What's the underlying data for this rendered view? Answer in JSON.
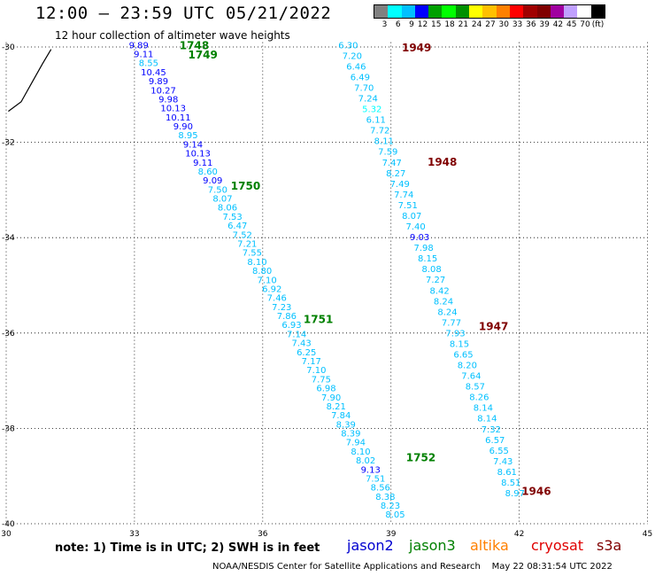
{
  "header": {
    "title": "12:00 — 23:59 UTC 05/21/2022",
    "subtitle": "12 hour collection of altimeter wave heights"
  },
  "legend": {
    "colors": [
      "#808080",
      "#00ffff",
      "#00c0ff",
      "#0000ff",
      "#00a000",
      "#00ff00",
      "#009000",
      "#ffff00",
      "#ffc000",
      "#ff8000",
      "#ff0000",
      "#a00000",
      "#800000",
      "#a000a0",
      "#c0a0ff",
      "#ffffff",
      "#000000"
    ],
    "labels": [
      "3",
      "6",
      "9",
      "12",
      "15",
      "18",
      "21",
      "24",
      "27",
      "30",
      "33",
      "36",
      "39",
      "42",
      "45",
      "70"
    ],
    "unit": "(ft)"
  },
  "map": {
    "lon_ticks": [
      "30",
      "33",
      "36",
      "39",
      "42",
      "45"
    ],
    "lat_ticks": [
      "-30",
      "-32",
      "-34",
      "-36",
      "-38",
      "-40"
    ]
  },
  "passes": [
    {
      "label": "1748",
      "lon": 34.4,
      "lat": -29.95,
      "color": "#008000"
    },
    {
      "label": "1749",
      "lon": 34.6,
      "lat": -30.15,
      "color": "#008000"
    },
    {
      "label": "1750",
      "lon": 35.6,
      "lat": -32.9,
      "color": "#008000"
    },
    {
      "label": "1751",
      "lon": 37.3,
      "lat": -35.7,
      "color": "#008000"
    },
    {
      "label": "1752",
      "lon": 39.7,
      "lat": -38.6,
      "color": "#008000"
    },
    {
      "label": "1949",
      "lon": 39.6,
      "lat": -30.0,
      "color": "#800000"
    },
    {
      "label": "1948",
      "lon": 40.2,
      "lat": -32.4,
      "color": "#800000"
    },
    {
      "label": "1947",
      "lon": 41.4,
      "lat": -35.85,
      "color": "#800000"
    },
    {
      "label": "1946",
      "lon": 42.4,
      "lat": -39.3,
      "color": "#800000"
    }
  ],
  "tracks": [
    {
      "name": "west",
      "lon_start": 33.1,
      "lon_end": 39.1,
      "lat_start": -29.95,
      "lat_end": -39.8,
      "values": [
        "9.89",
        "9.11",
        "8.55",
        "10.45",
        "9.89",
        "10.27",
        "9.98",
        "10.13",
        "10.11",
        "9.90",
        "8.95",
        "9.14",
        "10.13",
        "9.11",
        "8.60",
        "9.09",
        "7.50",
        "8.07",
        "8.06",
        "7.53",
        "6.47",
        "7.52",
        "7.21",
        "7.55",
        "8.10",
        "8.80",
        "7.10",
        "6.92",
        "7.46",
        "7.23",
        "7.86",
        "6.93",
        "7.14",
        "7.43",
        "6.25",
        "7.17",
        "7.10",
        "7.75",
        "6.98",
        "7.90",
        "8.21",
        "7.84",
        "8.39",
        "8.39",
        "7.94",
        "8.10",
        "8.02",
        "9.13",
        "7.51",
        "8.56",
        "8.38",
        "8.23",
        "8.05"
      ],
      "colors": [
        "#0000ff",
        "#0000ff",
        "#00c0ff",
        "#0000ff",
        "#0000ff",
        "#0000ff",
        "#0000ff",
        "#0000ff",
        "#0000ff",
        "#0000ff",
        "#00c0ff",
        "#0000ff",
        "#0000ff",
        "#0000ff",
        "#00c0ff",
        "#0000ff",
        "#00c0ff",
        "#00c0ff",
        "#00c0ff",
        "#00c0ff",
        "#00c0ff",
        "#00c0ff",
        "#00c0ff",
        "#00c0ff",
        "#00c0ff",
        "#00c0ff",
        "#00c0ff",
        "#00c0ff",
        "#00c0ff",
        "#00c0ff",
        "#00c0ff",
        "#00c0ff",
        "#00c0ff",
        "#00c0ff",
        "#00c0ff",
        "#00c0ff",
        "#00c0ff",
        "#00c0ff",
        "#00c0ff",
        "#00c0ff",
        "#00c0ff",
        "#00c0ff",
        "#00c0ff",
        "#00c0ff",
        "#00c0ff",
        "#00c0ff",
        "#00c0ff",
        "#0000ff",
        "#00c0ff",
        "#00c0ff",
        "#00c0ff",
        "#00c0ff",
        "#00c0ff"
      ]
    },
    {
      "name": "east",
      "lon_start": 38.0,
      "lon_end": 41.9,
      "lat_start": -29.95,
      "lat_end": -39.35,
      "values": [
        "6.30",
        "7.20",
        "6.46",
        "6.49",
        "7.70",
        "7.24",
        "5.32",
        "6.11",
        "7.72",
        "8.11",
        "7.59",
        "7.47",
        "8.27",
        "7.49",
        "7.74",
        "7.51",
        "8.07",
        "7.40",
        "9.03",
        "7.98",
        "8.15",
        "8.08",
        "7.27",
        "8.42",
        "8.24",
        "8.24",
        "7.77",
        "7.93",
        "8.15",
        "6.65",
        "8.20",
        "7.64",
        "8.57",
        "8.26",
        "8.14",
        "8.14",
        "7.32",
        "6.57",
        "6.55",
        "7.43",
        "8.61",
        "8.51",
        "8.97"
      ],
      "colors": [
        "#00c0ff",
        "#00c0ff",
        "#00c0ff",
        "#00c0ff",
        "#00c0ff",
        "#00c0ff",
        "#00ffff",
        "#00c0ff",
        "#00c0ff",
        "#00c0ff",
        "#00c0ff",
        "#00c0ff",
        "#00c0ff",
        "#00c0ff",
        "#00c0ff",
        "#00c0ff",
        "#00c0ff",
        "#00c0ff",
        "#0000ff",
        "#00c0ff",
        "#00c0ff",
        "#00c0ff",
        "#00c0ff",
        "#00c0ff",
        "#00c0ff",
        "#00c0ff",
        "#00c0ff",
        "#00c0ff",
        "#00c0ff",
        "#00c0ff",
        "#00c0ff",
        "#00c0ff",
        "#00c0ff",
        "#00c0ff",
        "#00c0ff",
        "#00c0ff",
        "#00c0ff",
        "#00c0ff",
        "#00c0ff",
        "#00c0ff",
        "#00c0ff",
        "#00c0ff",
        "#00c0ff"
      ]
    }
  ],
  "coastline": [
    [
      31.05,
      -30.05
    ],
    [
      30.85,
      -30.35
    ],
    [
      30.6,
      -30.75
    ],
    [
      30.35,
      -31.15
    ],
    [
      30.05,
      -31.35
    ]
  ],
  "footer": {
    "note": "note:  1) Time is in UTC;  2) SWH is in feet",
    "satellites": [
      {
        "name": "jason2",
        "color": "#0000d0"
      },
      {
        "name": "jason3",
        "color": "#008000"
      },
      {
        "name": "altika",
        "color": "#ff8000"
      },
      {
        "name": "cryosat",
        "color": "#e00000"
      },
      {
        "name": "s3a",
        "color": "#800000"
      }
    ],
    "credit": "NOAA/NESDIS Center for Satellite Applications and Research    May 22 08:31:54 UTC 2022"
  }
}
